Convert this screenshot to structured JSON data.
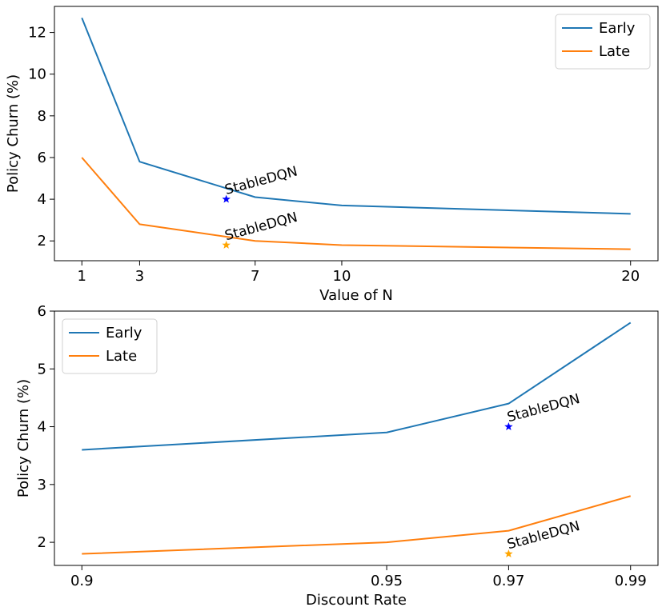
{
  "chart_data": [
    {
      "type": "line",
      "xlabel": "Value of N",
      "ylabel": "Policy Churn (%)",
      "x": [
        1,
        3,
        7,
        10,
        20
      ],
      "xticks": [
        1,
        3,
        7,
        10,
        20
      ],
      "xtick_labels": [
        "1",
        "3",
        "7",
        "10",
        "20"
      ],
      "xlim": [
        0.05,
        20.95
      ],
      "yticks": [
        2,
        4,
        6,
        8,
        10,
        12
      ],
      "ytick_labels": [
        "2",
        "4",
        "6",
        "8",
        "10",
        "12"
      ],
      "ylim": [
        1.05,
        13.25
      ],
      "series": [
        {
          "name": "Early",
          "color": "#1f77b4",
          "values": [
            12.7,
            5.8,
            4.1,
            3.7,
            3.3
          ]
        },
        {
          "name": "Late",
          "color": "#ff7f0e",
          "values": [
            6.0,
            2.8,
            2.0,
            1.8,
            1.6
          ]
        }
      ],
      "annotations": [
        {
          "text": "StableDQN",
          "x": 6,
          "y": 4.0,
          "marker": "star",
          "color": "#0000ff"
        },
        {
          "text": "StableDQN",
          "x": 6,
          "y": 1.8,
          "marker": "star",
          "color": "#ffa500"
        }
      ],
      "legend": "top-right",
      "grid": false
    },
    {
      "type": "line",
      "xlabel": "Discount Rate",
      "ylabel": "Policy Churn (%)",
      "x": [
        "0.9",
        "0.95",
        "0.97",
        "0.99"
      ],
      "xticks": [
        "0.9",
        "0.95",
        "0.97",
        "0.99"
      ],
      "xtick_labels": [
        "0.9",
        "0.95",
        "0.97",
        "0.99"
      ],
      "xlim": [
        0.8955,
        0.9945
      ],
      "yticks": [
        2,
        3,
        4,
        5,
        6
      ],
      "ytick_labels": [
        "2",
        "3",
        "4",
        "5",
        "6"
      ],
      "ylim": [
        1.6,
        6.0
      ],
      "series": [
        {
          "name": "Early",
          "color": "#1f77b4",
          "values": [
            3.6,
            3.9,
            4.4,
            5.8
          ]
        },
        {
          "name": "Late",
          "color": "#ff7f0e",
          "values": [
            1.8,
            2.0,
            2.2,
            2.8
          ]
        }
      ],
      "annotations": [
        {
          "text": "StableDQN",
          "x": "0.97",
          "y": 4.0,
          "marker": "star",
          "color": "#0000ff"
        },
        {
          "text": "StableDQN",
          "x": "0.97",
          "y": 1.8,
          "marker": "star",
          "color": "#ffa500"
        }
      ],
      "legend": "top-left",
      "grid": false
    }
  ]
}
